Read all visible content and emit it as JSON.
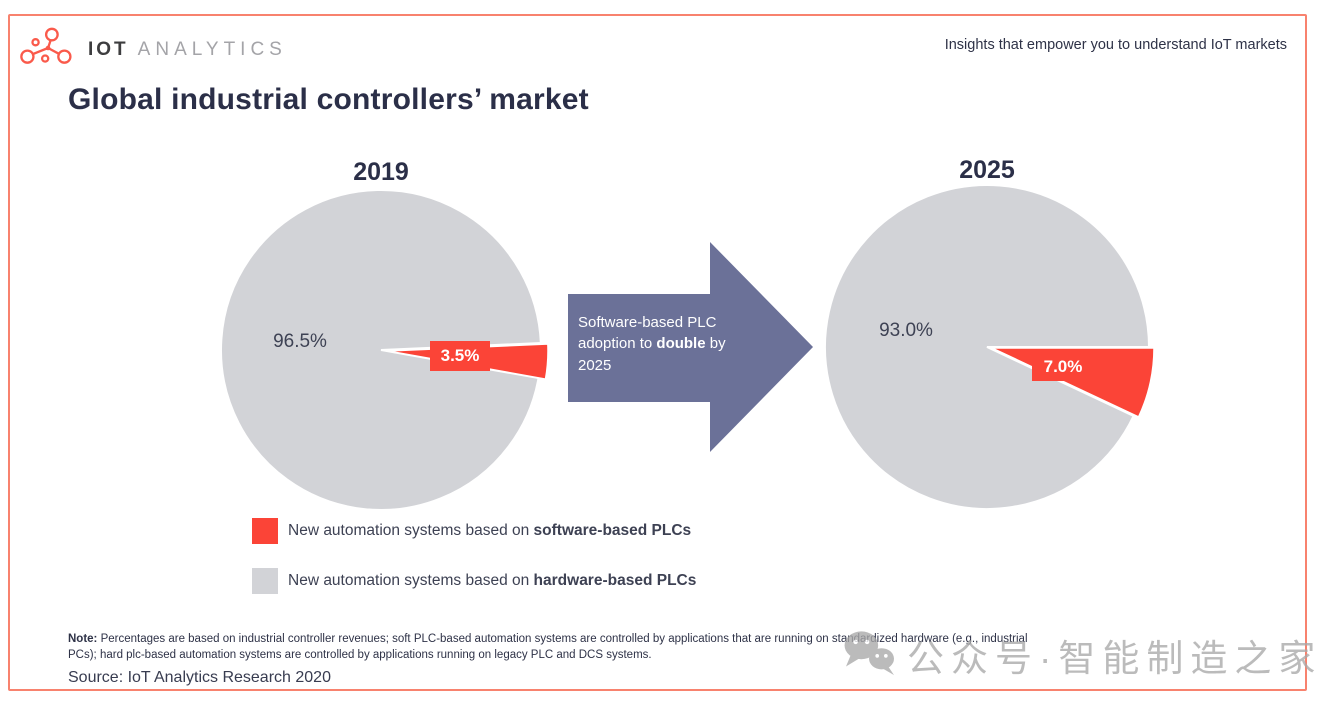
{
  "header": {
    "brand_bold": "IOT",
    "brand_light": "ANALYTICS",
    "tagline": "Insights that empower you to understand IoT markets"
  },
  "title": "Global industrial controllers’ market",
  "chart_data": {
    "type": "pie",
    "title": "Global industrial controllers’ market",
    "legend_position": "bottom-left",
    "colors": {
      "software": "#fb4437",
      "hardware": "#d2d3d7",
      "arrow": "#6b7198",
      "border": "#f8826e"
    },
    "pies": [
      {
        "label": "2019",
        "slices": [
          {
            "name": "New automation systems based on software-based PLCs",
            "value": 3.5,
            "display": "3.5%"
          },
          {
            "name": "New automation systems based on hardware-based PLCs",
            "value": 96.5,
            "display": "96.5%"
          }
        ]
      },
      {
        "label": "2025",
        "slices": [
          {
            "name": "New automation systems based on software-based PLCs",
            "value": 7.0,
            "display": "7.0%"
          },
          {
            "name": "New automation systems based on hardware-based PLCs",
            "value": 93.0,
            "display": "93.0%"
          }
        ]
      }
    ],
    "annotation": "Software-based PLC adoption to double by 2025"
  },
  "arrow": {
    "color": "#6b7198",
    "line1": "Software-based PLC",
    "line2_pre": "adoption to ",
    "line2_bold": "double",
    "line2_post": " by",
    "line3": "2025"
  },
  "legend": [
    {
      "color": "#fb4437",
      "text_normal": "New automation systems based on ",
      "text_bold": "software-based PLCs"
    },
    {
      "color": "#d2d3d7",
      "text_normal": "New automation systems based on ",
      "text_bold": "hardware-based PLCs"
    }
  ],
  "note": {
    "label": "Note:",
    "line1": " Percentages are based on industrial controller revenues; soft PLC-based automation systems are controlled by applications that are running on standardized hardware (e.g., industrial",
    "line2": "PCs); hard plc-based automation systems are controlled by applications running on legacy PLC and DCS systems."
  },
  "source": "Source: IoT Analytics Research 2020",
  "watermark": {
    "text": "公众号·智能制造之家"
  }
}
